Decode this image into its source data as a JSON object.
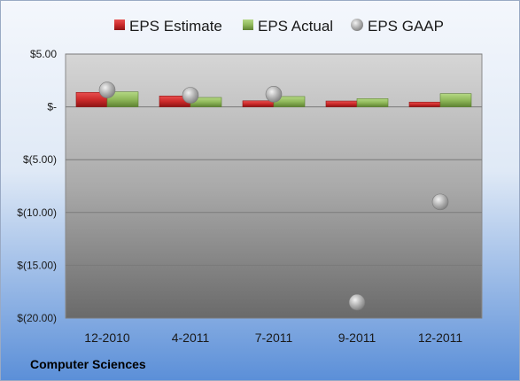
{
  "caption": "Computer Sciences",
  "colors": {
    "estimate": "#cc2a2a",
    "actual": "#8fb85a",
    "gaap": "#a0a0a0",
    "background_top": "#f4f7fc",
    "background_bottom": "#5b8fd8",
    "plot_top": "#d4d4d4",
    "plot_bottom": "#6c6c6c"
  },
  "chart_data": {
    "type": "bar",
    "categories": [
      "12-2010",
      "4-2011",
      "7-2011",
      "9-2011",
      "12-2011"
    ],
    "series": [
      {
        "name": "EPS Estimate",
        "kind": "bar",
        "color": "#cc2a2a",
        "values": [
          1.37,
          1.03,
          0.57,
          0.55,
          0.45
        ]
      },
      {
        "name": "EPS Actual",
        "kind": "bar",
        "color": "#8fb85a",
        "values": [
          1.42,
          0.89,
          0.98,
          0.78,
          1.25
        ]
      },
      {
        "name": "EPS GAAP",
        "kind": "scatter",
        "color": "#a0a0a0",
        "values": [
          1.6,
          1.1,
          1.2,
          -18.5,
          -9.0
        ]
      }
    ],
    "y_ticks": [
      {
        "value": 5,
        "label": "$5.00"
      },
      {
        "value": 0,
        "label": "$-"
      },
      {
        "value": -5,
        "label": "$(5.00)"
      },
      {
        "value": -10,
        "label": "$(10.00)"
      },
      {
        "value": -15,
        "label": "$(15.00)"
      },
      {
        "value": -20,
        "label": "$(20.00)"
      }
    ],
    "ylim": [
      -20,
      5
    ],
    "grid": true,
    "legend_position": "top"
  }
}
